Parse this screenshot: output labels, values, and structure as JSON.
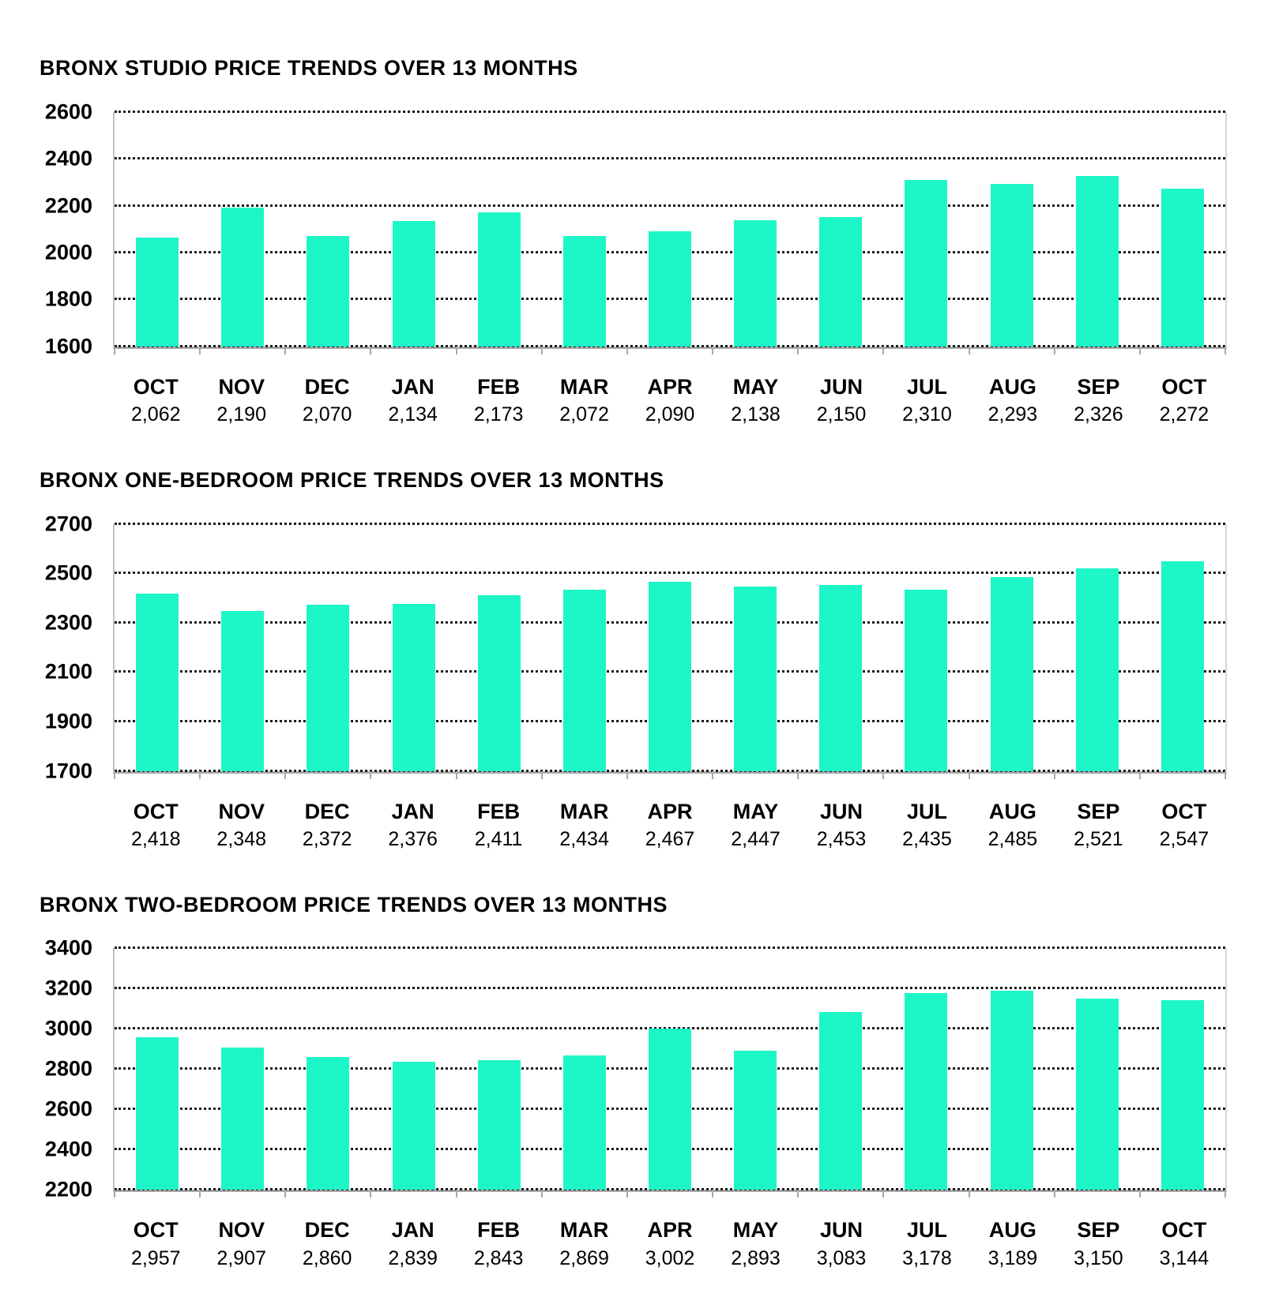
{
  "page": {
    "background": "#ffffff"
  },
  "chart_data": [
    {
      "type": "bar",
      "title": "BRONX STUDIO PRICE TRENDS OVER 13 MONTHS",
      "categories": [
        "OCT",
        "NOV",
        "DEC",
        "JAN",
        "FEB",
        "MAR",
        "APR",
        "MAY",
        "JUN",
        "JUL",
        "AUG",
        "SEP",
        "OCT"
      ],
      "values": [
        2062,
        2190,
        2070,
        2134,
        2173,
        2072,
        2090,
        2138,
        2150,
        2310,
        2293,
        2326,
        2272
      ],
      "value_labels": [
        "2,062",
        "2,190",
        "2,070",
        "2,134",
        "2,173",
        "2,072",
        "2,090",
        "2,138",
        "2,150",
        "2,310",
        "2,293",
        "2,326",
        "2,272"
      ],
      "xlabel": "",
      "ylabel": "",
      "ylim": [
        1600,
        2600
      ],
      "yticks": [
        2600,
        2400,
        2200,
        2000,
        1800,
        1600
      ],
      "grid": "dotted-horizontal",
      "legend": "none",
      "bar_color": "#1df6c7"
    },
    {
      "type": "bar",
      "title": "BRONX ONE-BEDROOM PRICE TRENDS OVER 13 MONTHS",
      "categories": [
        "OCT",
        "NOV",
        "DEC",
        "JAN",
        "FEB",
        "MAR",
        "APR",
        "MAY",
        "JUN",
        "JUL",
        "AUG",
        "SEP",
        "OCT"
      ],
      "values": [
        2418,
        2348,
        2372,
        2376,
        2411,
        2434,
        2467,
        2447,
        2453,
        2435,
        2485,
        2521,
        2547
      ],
      "value_labels": [
        "2,418",
        "2,348",
        "2,372",
        "2,376",
        "2,411",
        "2,434",
        "2,467",
        "2,447",
        "2,453",
        "2,435",
        "2,485",
        "2,521",
        "2,547"
      ],
      "xlabel": "",
      "ylabel": "",
      "ylim": [
        1700,
        2700
      ],
      "yticks": [
        2700,
        2500,
        2300,
        2100,
        1900,
        1700
      ],
      "grid": "dotted-horizontal",
      "legend": "none",
      "bar_color": "#1df6c7"
    },
    {
      "type": "bar",
      "title": "BRONX TWO-BEDROOM PRICE TRENDS OVER 13 MONTHS",
      "categories": [
        "OCT",
        "NOV",
        "DEC",
        "JAN",
        "FEB",
        "MAR",
        "APR",
        "MAY",
        "JUN",
        "JUL",
        "AUG",
        "SEP",
        "OCT"
      ],
      "values": [
        2957,
        2907,
        2860,
        2839,
        2843,
        2869,
        3002,
        2893,
        3083,
        3178,
        3189,
        3150,
        3144
      ],
      "value_labels": [
        "2,957",
        "2,907",
        "2,860",
        "2,839",
        "2,843",
        "2,869",
        "3,002",
        "2,893",
        "3,083",
        "3,178",
        "3,189",
        "3,150",
        "3,144"
      ],
      "xlabel": "",
      "ylabel": "",
      "ylim": [
        2200,
        3400
      ],
      "yticks": [
        3400,
        3200,
        3000,
        2800,
        2600,
        2400,
        2200
      ],
      "grid": "dotted-horizontal",
      "legend": "none",
      "bar_color": "#1df6c7"
    }
  ]
}
